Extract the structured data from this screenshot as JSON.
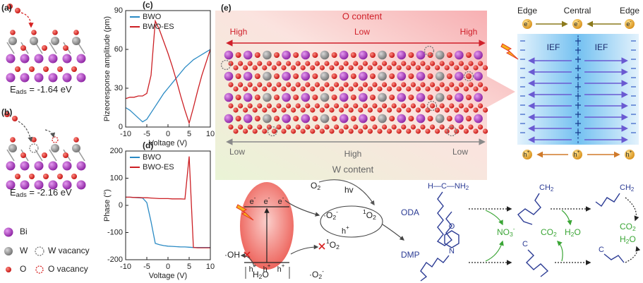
{
  "figure": {
    "a": {
      "label": "(a)",
      "energy": [
        "E",
        {
          "sub": "ads"
        },
        " = -1.64 eV"
      ]
    },
    "b": {
      "label": "(b)",
      "energy": [
        "E",
        {
          "sub": "ads"
        },
        " = -2.16 eV"
      ]
    },
    "legend": {
      "bi": "Bi",
      "w": "W",
      "w_vacancy": "W vacancy",
      "o": "O",
      "o_vacancy": "O vacancy"
    },
    "e": {
      "label": "(e)",
      "o_content": "O content",
      "o_levels": [
        "High",
        "Low",
        "High"
      ],
      "w_levels": [
        "Low",
        "High",
        "Low"
      ],
      "w_content": "W content",
      "positions": [
        "Edge",
        "Central",
        "Edge"
      ],
      "electron": [
        "e",
        {
          "sup": "-"
        }
      ],
      "hole": [
        "h",
        {
          "sup": "+"
        }
      ],
      "ief": "IEF",
      "o2": [
        "O",
        {
          "sub": "2"
        }
      ],
      "hv": "hv",
      "superoxide": [
        "·O",
        {
          "sub": "2"
        },
        {
          "sup": "-"
        }
      ],
      "singlet_o2": [
        {
          "sup": "1"
        },
        "O",
        {
          "sub": "2"
        }
      ],
      "hydroxyl": "·OH",
      "h2o": [
        "H",
        {
          "sub": "2"
        },
        "O"
      ],
      "oda": "ODA",
      "dmp": "DMP",
      "oda_group": [
        "H—C—NH",
        {
          "sub": "2"
        }
      ],
      "dmp_n": "N",
      "dmp_o": "O",
      "nitrate": [
        "NO",
        {
          "sub": "3"
        },
        {
          "sup": "-"
        }
      ],
      "co2": [
        "CO",
        {
          "sub": "2"
        }
      ],
      "ch2": [
        "CH",
        {
          "sub": "2"
        }
      ],
      "carbon": "C"
    }
  },
  "chart_data": [
    {
      "type": "line",
      "label": "(c)",
      "xlabel": "Voltage (V)",
      "ylabel": "Pizeoresponse amplitude (pm)",
      "x": [
        -10,
        -9,
        -8,
        -7,
        -6,
        -5,
        -4,
        -3,
        -2,
        -1,
        0,
        1,
        2,
        3,
        4,
        5,
        6,
        7,
        8,
        9,
        10
      ],
      "series": [
        {
          "name": "BWO",
          "color": "#2a8ac4",
          "values": [
            15,
            13,
            10,
            7,
            4,
            6,
            11,
            16,
            21,
            26,
            30,
            34,
            38,
            42,
            46,
            49,
            52,
            54,
            56,
            58,
            60
          ]
        },
        {
          "name": "BWO-ES",
          "color": "#cc1f24",
          "values": [
            22,
            23,
            23,
            24,
            24,
            26,
            40,
            82,
            75,
            66,
            57,
            47,
            36,
            24,
            13,
            3,
            15,
            28,
            40,
            50,
            60
          ]
        }
      ],
      "xlim": [
        -10,
        10
      ],
      "xticks": [
        -10,
        -5,
        0,
        5,
        10
      ],
      "ylim": [
        0,
        90
      ],
      "yticks": [
        0,
        30,
        60,
        90
      ],
      "legend": "upper left"
    },
    {
      "type": "line",
      "label": "(d)",
      "xlabel": "Voltage (V)",
      "ylabel": "Phase (°)",
      "x": [
        -10,
        -9,
        -8,
        -7,
        -6,
        -5,
        -4,
        -3,
        -2,
        -1,
        0,
        1,
        2,
        3,
        4,
        5,
        6,
        7,
        8,
        9,
        10
      ],
      "series": [
        {
          "name": "BWO",
          "color": "#2a8ac4",
          "values": [
            30,
            30,
            29,
            28,
            27,
            10,
            -60,
            -140,
            -145,
            -148,
            -150,
            -151,
            -152,
            -153,
            -153,
            -154,
            -155,
            -155,
            -155,
            -155,
            -155
          ]
        },
        {
          "name": "BWO-ES",
          "color": "#cc1f24",
          "values": [
            30,
            30,
            29,
            29,
            28,
            28,
            27,
            26,
            25,
            25,
            25,
            24,
            24,
            24,
            23,
            180,
            -155,
            -156,
            -156,
            -156,
            -156
          ]
        }
      ],
      "xlim": [
        -10,
        10
      ],
      "xticks": [
        -10,
        -5,
        0,
        5,
        10
      ],
      "ylim": [
        -200,
        200
      ],
      "yticks": [
        -200,
        -100,
        0,
        100,
        200
      ],
      "legend": "upper left"
    }
  ]
}
